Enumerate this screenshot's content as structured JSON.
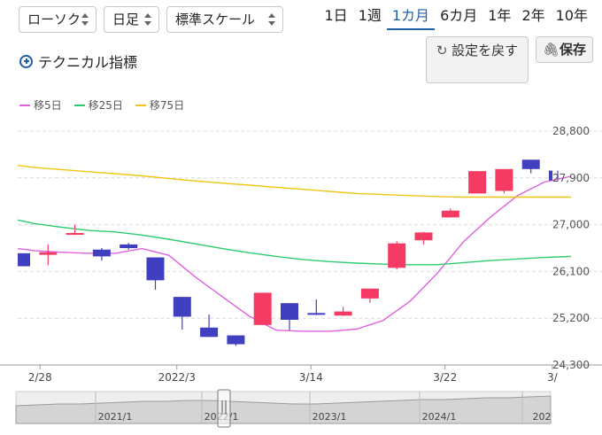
{
  "controls": {
    "chart_type": "ローソク",
    "interval": "日足",
    "scale": "標準スケール"
  },
  "periods": [
    {
      "label": "1日",
      "active": false
    },
    {
      "label": "1週",
      "active": false
    },
    {
      "label": "1カ月",
      "active": true
    },
    {
      "label": "6カ月",
      "active": false
    },
    {
      "label": "1年",
      "active": false
    },
    {
      "label": "2年",
      "active": false
    },
    {
      "label": "10年",
      "active": false
    }
  ],
  "technical_link": "テクニカル指標",
  "reset_button": "設定を戻す",
  "save_button": "保存",
  "legend": [
    {
      "label": "移5日",
      "color": "#e060e0"
    },
    {
      "label": "移25日",
      "color": "#2ecc71"
    },
    {
      "label": "移75日",
      "color": "#f1c40f"
    }
  ],
  "chart_data": {
    "type": "candlestick",
    "y_ticks": [
      "28,800",
      "27,900",
      "27,000",
      "26,100",
      "25,200",
      "24,300"
    ],
    "ylim": [
      24300,
      28800
    ],
    "x_ticks": [
      {
        "label": "2/28",
        "index": 0.7
      },
      {
        "label": "2022/3",
        "index": 5.8
      },
      {
        "label": "3/14",
        "index": 10.8
      },
      {
        "label": "3/22",
        "index": 15.8
      },
      {
        "label": "3/",
        "index": 19.8
      }
    ],
    "candles": [
      {
        "o": 26450,
        "c": 26200,
        "h": 26450,
        "l": 26200
      },
      {
        "o": 26420,
        "c": 26470,
        "h": 26620,
        "l": 26220
      },
      {
        "o": 26820,
        "c": 26840,
        "h": 27000,
        "l": 26800
      },
      {
        "o": 26520,
        "c": 26390,
        "h": 26550,
        "l": 26310
      },
      {
        "o": 26620,
        "c": 26550,
        "h": 26650,
        "l": 26520
      },
      {
        "o": 26370,
        "c": 25930,
        "h": 26370,
        "l": 25750
      },
      {
        "o": 25610,
        "c": 25230,
        "h": 25610,
        "l": 24980
      },
      {
        "o": 25020,
        "c": 24840,
        "h": 25270,
        "l": 24840
      },
      {
        "o": 24870,
        "c": 24700,
        "h": 24870,
        "l": 24670
      },
      {
        "o": 25070,
        "c": 25690,
        "h": 25690,
        "l": 25070
      },
      {
        "o": 25490,
        "c": 25170,
        "h": 25490,
        "l": 24970
      },
      {
        "o": 25300,
        "c": 25280,
        "h": 25560,
        "l": 25260
      },
      {
        "o": 25250,
        "c": 25330,
        "h": 25420,
        "l": 25250
      },
      {
        "o": 25580,
        "c": 25770,
        "h": 25770,
        "l": 25500
      },
      {
        "o": 26170,
        "c": 26640,
        "h": 26680,
        "l": 26140
      },
      {
        "o": 26700,
        "c": 26850,
        "h": 26860,
        "l": 26620
      },
      {
        "o": 27140,
        "c": 27270,
        "h": 27310,
        "l": 27140
      },
      {
        "o": 27600,
        "c": 28030,
        "h": 28030,
        "l": 27600
      },
      {
        "o": 27650,
        "c": 28070,
        "h": 28070,
        "l": 27600
      },
      {
        "o": 28250,
        "c": 28070,
        "h": 28250,
        "l": 27990
      },
      {
        "o": 28040,
        "c": 27850,
        "h": 28040,
        "l": 27850
      }
    ],
    "ma": [
      {
        "name": "移5日",
        "color": "#e060e0",
        "values": [
          26540,
          26500,
          26470,
          26450,
          26450,
          26540,
          26410,
          25990,
          25610,
          25240,
          24970,
          24950,
          24950,
          24990,
          25160,
          25530,
          26060,
          26680,
          27150,
          27560,
          27820,
          27930
        ]
      },
      {
        "name": "移25日",
        "color": "#2ecc71",
        "values": [
          27090,
          27020,
          26950,
          26890,
          26860,
          26800,
          26720,
          26630,
          26540,
          26460,
          26390,
          26330,
          26290,
          26260,
          26240,
          26230,
          26230,
          26270,
          26310,
          26340,
          26370,
          26390
        ]
      },
      {
        "name": "移75日",
        "color": "#f1c40f",
        "values": [
          28140,
          28100,
          28060,
          28020,
          27980,
          27940,
          27890,
          27840,
          27800,
          27760,
          27720,
          27680,
          27640,
          27600,
          27580,
          27560,
          27540,
          27530,
          27530,
          27530,
          27530,
          27530
        ]
      }
    ],
    "up_color": "#f53b63",
    "down_color": "#3f3fc0",
    "navigator_labels": [
      "2021/1",
      "2022/1",
      "2023/1",
      "2024/1",
      "202"
    ]
  }
}
